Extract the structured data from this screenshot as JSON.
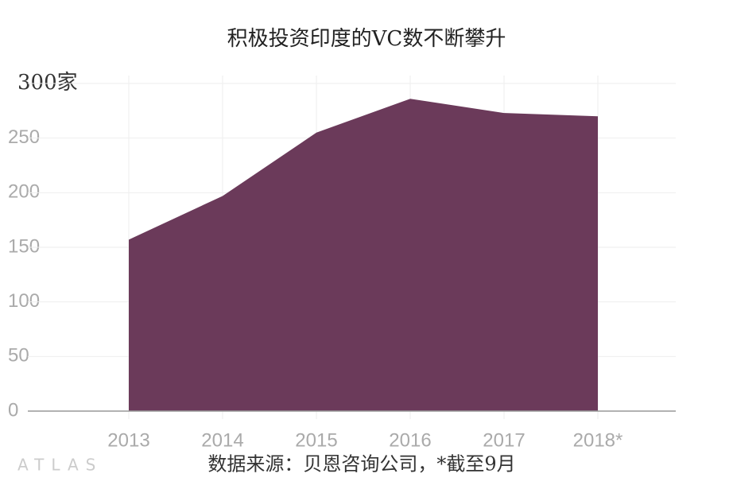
{
  "chart_data": {
    "type": "area",
    "title": "积极投资印度的VC数不断攀升",
    "categories": [
      "2013",
      "2014",
      "2015",
      "2016",
      "2017",
      "2018*"
    ],
    "values": [
      157,
      197,
      255,
      286,
      273,
      270
    ],
    "color": "#6b3a5a",
    "ylim": [
      0,
      300
    ],
    "yticks": [
      0,
      50,
      100,
      150,
      200,
      250,
      {
        "value": 300,
        "label": "300家"
      }
    ],
    "grid": true,
    "source": "数据来源：贝恩咨询公司，*截至9月",
    "logo": "ATLAS"
  }
}
